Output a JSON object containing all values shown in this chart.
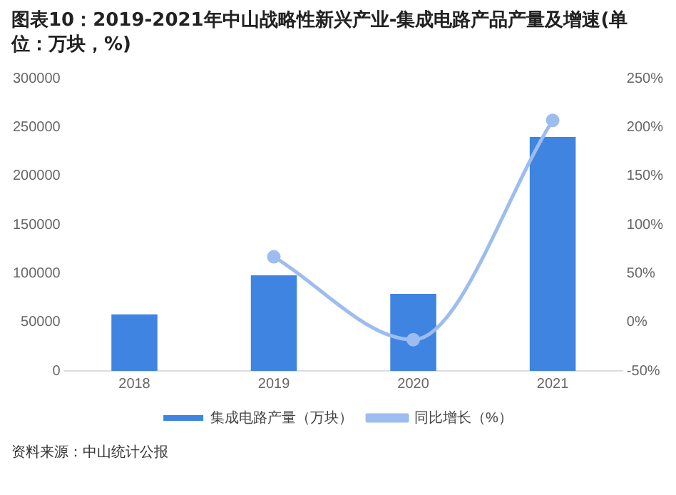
{
  "chart_data": {
    "type": "bar",
    "title": "图表10：2019-2021年中山战略性新兴产业-集成电路产品产量及增速(单位：万块，%)",
    "categories": [
      "2018",
      "2019",
      "2020",
      "2021"
    ],
    "series": [
      {
        "name": "集成电路产量（万块）",
        "color": "#3f84e0",
        "values": [
          58000,
          98000,
          79000,
          240000
        ]
      },
      {
        "name": "同比增长（%）",
        "type": "line",
        "axis": "y2",
        "color": "#9dbcf0",
        "values": [
          null,
          67,
          -18,
          207
        ]
      }
    ],
    "ylim": [
      0,
      300000
    ],
    "yticks": [
      0,
      50000,
      100000,
      150000,
      200000,
      250000,
      300000
    ],
    "y2lim": [
      -50,
      250
    ],
    "y2ticks": [
      {
        "value": -50,
        "label": "-50%"
      },
      {
        "value": 0,
        "label": "0%"
      },
      {
        "value": 50,
        "label": "50%"
      },
      {
        "value": 100,
        "label": "100%"
      },
      {
        "value": 150,
        "label": "150%"
      },
      {
        "value": 200,
        "label": "200%"
      },
      {
        "value": 250,
        "label": "250%"
      }
    ],
    "grid": false,
    "legend": "bottom",
    "marker": "circle",
    "annotations": [
      "资料来源：中山统计公报"
    ]
  }
}
